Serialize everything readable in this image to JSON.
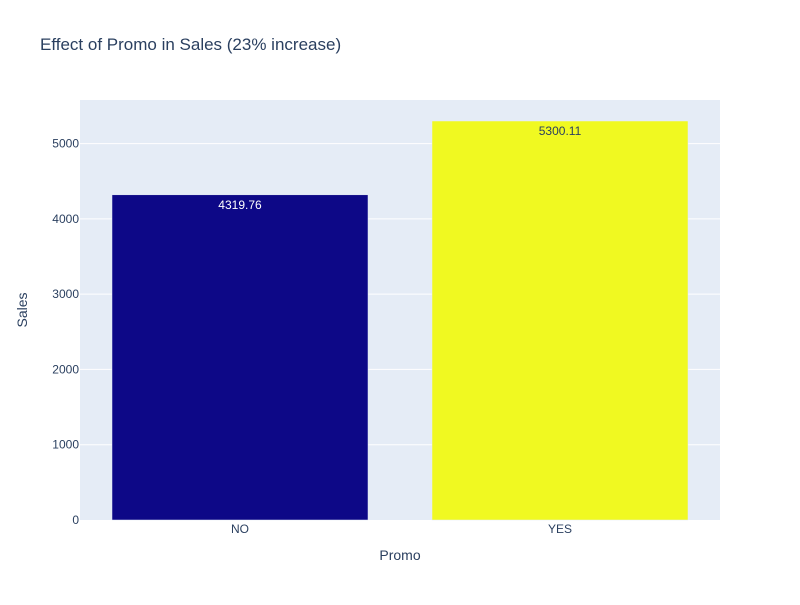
{
  "chart_data": {
    "type": "bar",
    "title": "Effect of Promo in Sales (23% increase)",
    "xlabel": "Promo",
    "ylabel": "Sales",
    "categories": [
      "NO",
      "YES"
    ],
    "values": [
      4319.76,
      5300.11
    ],
    "value_labels": [
      "4319.76",
      "5300.11"
    ],
    "bar_colors": [
      "#0d0887",
      "#f0f921"
    ],
    "label_colors": [
      "#ffffff",
      "#2a3f5f"
    ],
    "ylim": [
      0,
      5579.06
    ],
    "yticks": [
      0,
      1000,
      2000,
      3000,
      4000,
      5000
    ],
    "ytick_labels": [
      "0",
      "1000",
      "2000",
      "3000",
      "4000",
      "5000"
    ],
    "grid": true,
    "legend": "none",
    "plot_background": "#e5ecf6",
    "gridline_color": "#ffffff",
    "text_color": "#2a3f5f"
  }
}
